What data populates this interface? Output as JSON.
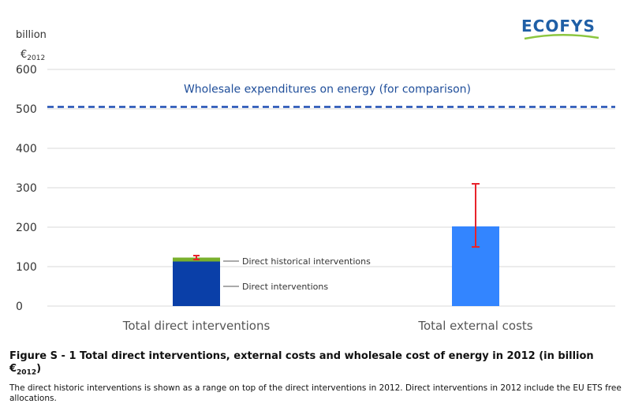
{
  "logo": {
    "text": "ECOFYS",
    "accent_color": "#1f5fa6",
    "swoosh_color": "#8cc63f"
  },
  "chart_data": {
    "type": "bar",
    "ylabel_line1": "billion",
    "ylabel_line2": "€",
    "ylabel_sub": "2012",
    "ylim": [
      0,
      600
    ],
    "yticks": [
      0,
      100,
      200,
      300,
      400,
      500,
      600
    ],
    "grid": true,
    "categories": [
      "Total direct interventions",
      "Total external costs"
    ],
    "series": [
      {
        "values": [
          113,
          202
        ],
        "colors": [
          "#0a3fa8",
          "#3385ff"
        ]
      },
      {
        "values": [
          10,
          0
        ],
        "color": "#7ab02c"
      }
    ],
    "error_bars": [
      {
        "category": "Total direct interventions",
        "center": 122,
        "low": 118,
        "high": 128,
        "color": "#e8232b"
      },
      {
        "category": "Total external costs",
        "center": 202,
        "low": 150,
        "high": 310,
        "color": "#e8232b"
      }
    ],
    "reference_line": {
      "value": 505,
      "label": "Wholesale expenditures on energy (for comparison)",
      "color": "#1f4eb4",
      "style": "dashed"
    },
    "annotations": [
      {
        "text": "Direct historical interventions",
        "category": "Total direct interventions",
        "value": 113
      },
      {
        "text": "Direct interventions",
        "category": "Total direct interventions",
        "value": 50
      }
    ]
  },
  "caption": {
    "title": "Figure S - 1 Total direct interventions, external costs and wholesale cost of energy in 2012 (in billion €",
    "title_sub": "2012",
    "title_end": ")",
    "body": "The direct historic interventions is shown as a range on top of the direct interventions in 2012. Direct interventions in 2012 include the EU ETS free allocations."
  }
}
